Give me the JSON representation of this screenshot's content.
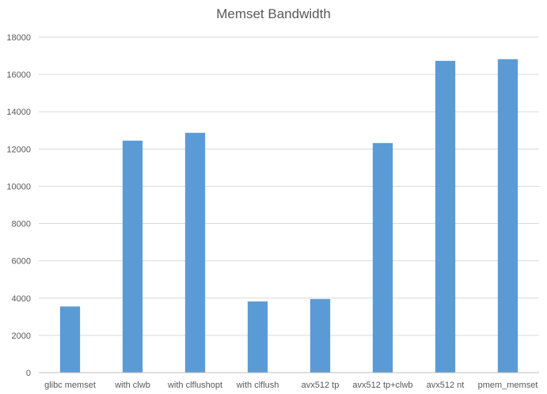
{
  "chart_data": {
    "type": "bar",
    "title": "Memset Bandwidth",
    "xlabel": "",
    "ylabel": "",
    "categories": [
      "glibc memset",
      "with clwb",
      "with clflushopt",
      "with clflush",
      "avx512 tp",
      "avx512 tp+clwb",
      "avx512 nt",
      "pmem_memset"
    ],
    "values": [
      3550,
      12450,
      12870,
      3820,
      3950,
      12320,
      16730,
      16820
    ],
    "ylim": [
      0,
      18000
    ],
    "yticks": [
      0,
      2000,
      4000,
      6000,
      8000,
      10000,
      12000,
      14000,
      16000,
      18000
    ],
    "ytick_labels": [
      "0",
      "2000",
      "4000",
      "6000",
      "8000",
      "10000",
      "12000",
      "14000",
      "16000",
      "18000"
    ],
    "grid": true,
    "legend": "none",
    "bar_color": "#5b9bd5",
    "grid_color": "#d9d9d9",
    "axis_color": "#bfbfbf"
  }
}
